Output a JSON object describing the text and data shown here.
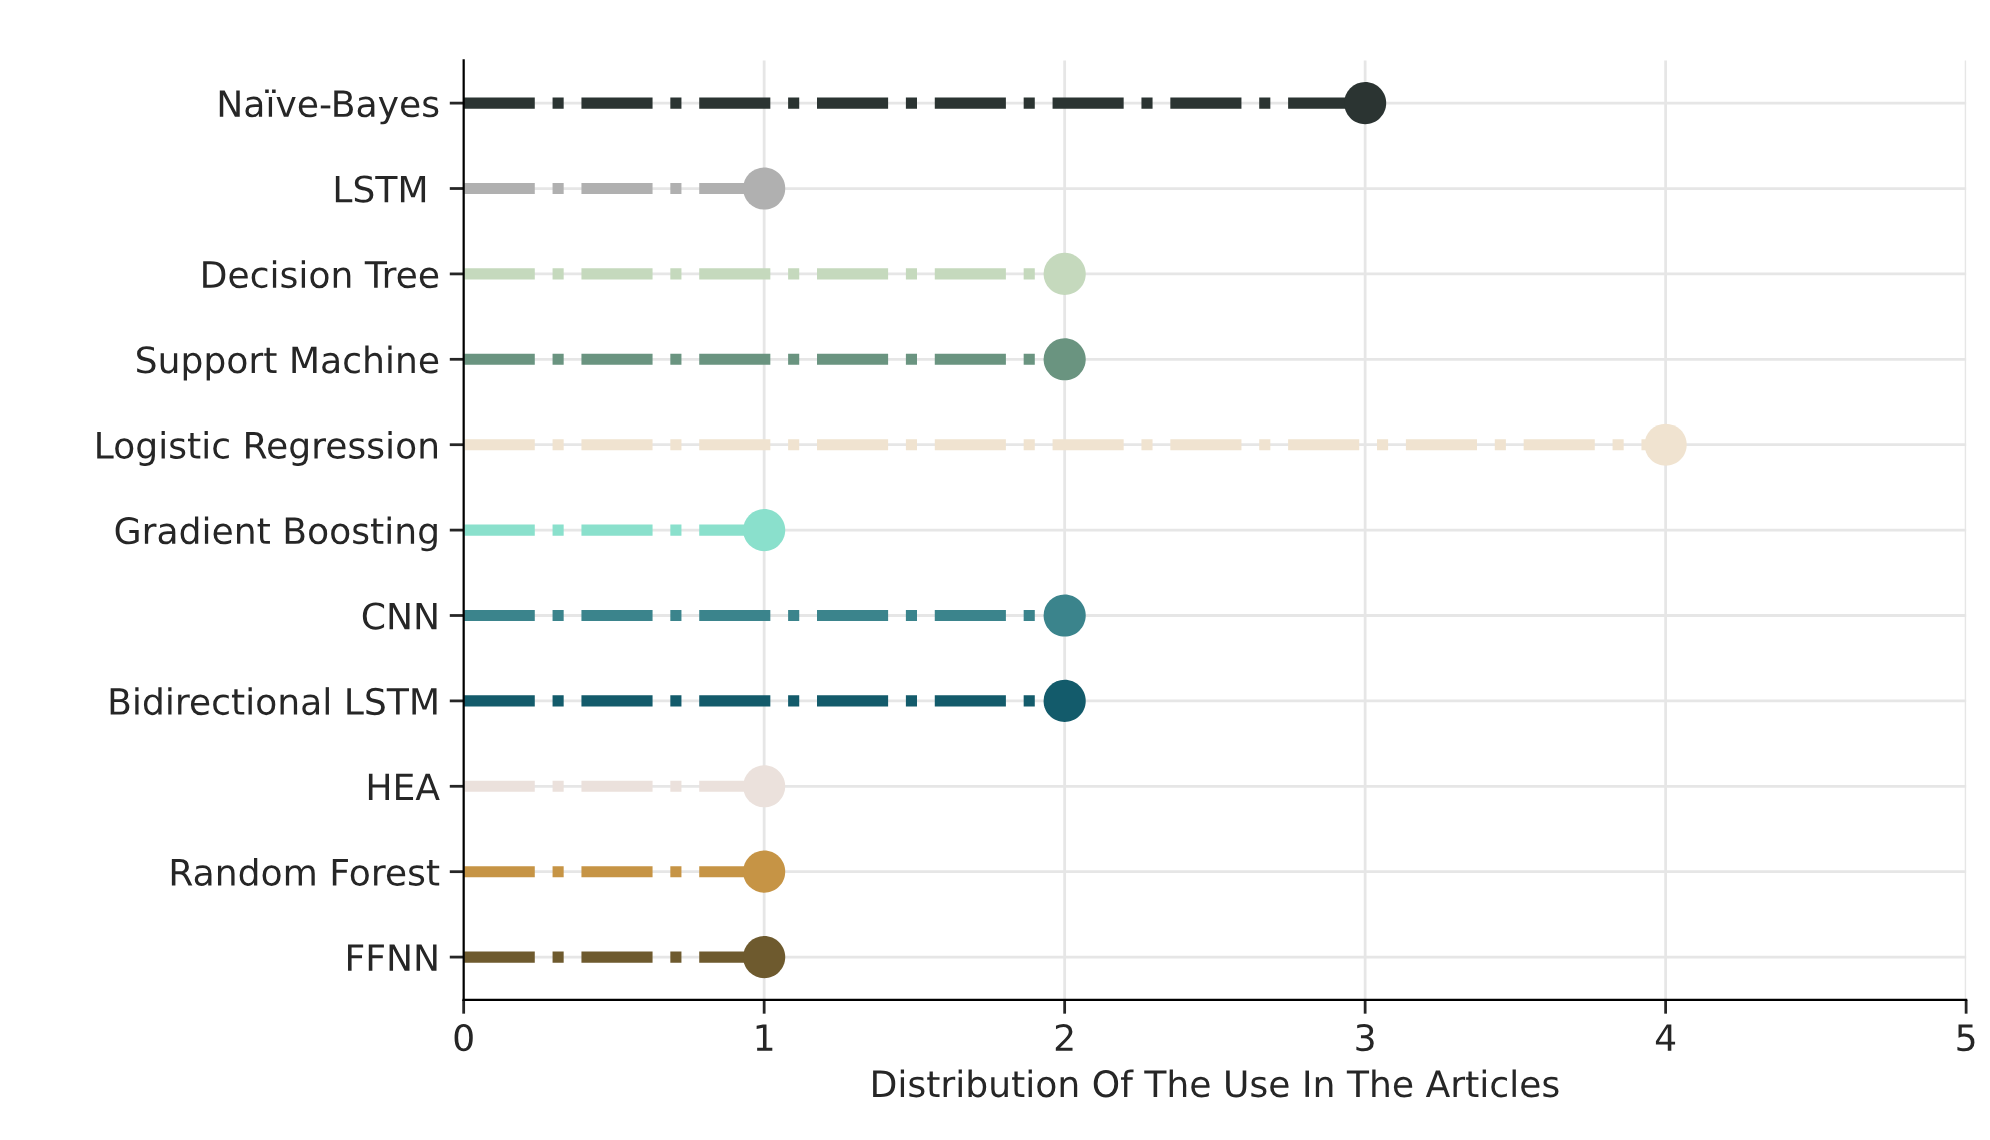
{
  "chart_data": {
    "type": "lollipop",
    "orientation": "horizontal",
    "xlabel": "Distribution Of The Use In The Articles",
    "categories": [
      "Naïve-Bayes",
      "LSTM ",
      "Decision Tree",
      "Support Machine",
      "Logistic Regression",
      "Gradient Boosting",
      "CNN",
      "Bidirectional LSTM",
      "HEA",
      "Random Forest",
      "FFNN"
    ],
    "values": [
      3,
      1,
      2,
      2,
      4,
      1,
      2,
      2,
      1,
      1,
      1
    ],
    "colors": [
      "#2b3432",
      "#b0b0b0",
      "#c5d9bd",
      "#6a9480",
      "#f0e3d0",
      "#8ae0cc",
      "#3b848c",
      "#135b6b",
      "#ebe1dc",
      "#c69445",
      "#6e5a2e"
    ],
    "xlim": [
      0,
      5
    ],
    "xticks": [
      0,
      1,
      2,
      3,
      4,
      5
    ],
    "grid": true,
    "marker": "circle",
    "line_style": "dashdot"
  }
}
